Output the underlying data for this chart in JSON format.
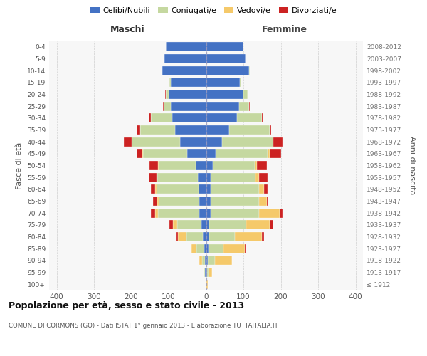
{
  "age_groups": [
    "100+",
    "95-99",
    "90-94",
    "85-89",
    "80-84",
    "75-79",
    "70-74",
    "65-69",
    "60-64",
    "55-59",
    "50-54",
    "45-49",
    "40-44",
    "35-39",
    "30-34",
    "25-29",
    "20-24",
    "15-19",
    "10-14",
    "5-9",
    "0-4"
  ],
  "birth_years": [
    "≤ 1912",
    "1913-1917",
    "1918-1922",
    "1923-1927",
    "1928-1932",
    "1933-1937",
    "1938-1942",
    "1943-1947",
    "1948-1952",
    "1953-1957",
    "1958-1962",
    "1963-1967",
    "1968-1972",
    "1973-1977",
    "1978-1982",
    "1983-1987",
    "1988-1992",
    "1993-1997",
    "1998-2002",
    "2003-2007",
    "2008-2012"
  ],
  "colors": {
    "celibi": "#4472c4",
    "coniugati": "#c5d8a0",
    "vedovi": "#f5c96a",
    "divorziati": "#cc2222"
  },
  "males": {
    "celibi": [
      1,
      2,
      3,
      5,
      8,
      12,
      18,
      18,
      20,
      22,
      28,
      50,
      70,
      82,
      90,
      95,
      100,
      95,
      118,
      112,
      107
    ],
    "coniugati": [
      0,
      2,
      8,
      20,
      45,
      65,
      110,
      108,
      112,
      108,
      98,
      118,
      130,
      95,
      58,
      18,
      8,
      3,
      2,
      1,
      0
    ],
    "vedovi": [
      0,
      3,
      8,
      15,
      22,
      12,
      8,
      5,
      4,
      3,
      3,
      2,
      0,
      0,
      0,
      0,
      0,
      0,
      0,
      0,
      0
    ],
    "divorziati": [
      0,
      0,
      0,
      0,
      5,
      10,
      12,
      10,
      12,
      20,
      22,
      15,
      20,
      8,
      5,
      3,
      2,
      0,
      0,
      0,
      0
    ]
  },
  "females": {
    "celibi": [
      1,
      3,
      4,
      6,
      8,
      8,
      12,
      12,
      13,
      13,
      18,
      25,
      42,
      62,
      82,
      88,
      100,
      90,
      115,
      105,
      100
    ],
    "coniugati": [
      0,
      3,
      20,
      40,
      70,
      100,
      130,
      130,
      128,
      120,
      113,
      140,
      138,
      108,
      68,
      28,
      12,
      5,
      2,
      0,
      0
    ],
    "vedovi": [
      3,
      10,
      45,
      58,
      72,
      62,
      55,
      20,
      15,
      8,
      6,
      5,
      0,
      0,
      0,
      0,
      0,
      0,
      0,
      0,
      0
    ],
    "divorziati": [
      0,
      0,
      0,
      3,
      5,
      10,
      8,
      5,
      8,
      24,
      26,
      30,
      25,
      5,
      3,
      2,
      0,
      0,
      0,
      0,
      0
    ]
  },
  "title": "Popolazione per età, sesso e stato civile - 2013",
  "subtitle": "COMUNE DI CORMONS (GO) - Dati ISTAT 1° gennaio 2013 - Elaborazione TUTTAITALIA.IT",
  "header_left": "Maschi",
  "header_right": "Femmine",
  "ylabel_left": "Fasce di età",
  "ylabel_right": "Anni di nascita",
  "xlim": 420,
  "xticks": [
    -400,
    -300,
    -200,
    -100,
    0,
    100,
    200,
    300,
    400
  ],
  "legend_labels": [
    "Celibi/Nubili",
    "Coniugati/e",
    "Vedovi/e",
    "Divorziati/e"
  ],
  "bg_color": "#ffffff",
  "plot_bg": "#f7f7f7",
  "grid_color": "#cccccc",
  "bar_height": 0.78
}
